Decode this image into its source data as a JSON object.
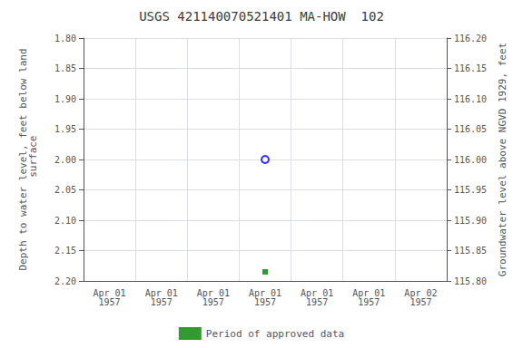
{
  "chart_data": {
    "type": "scatter",
    "title": "USGS 421140070521401 MA-HOW  102",
    "y_label": "Depth to water level, feet below land\n surface",
    "y2_label": "Groundwater level above NGVD 1929, feet",
    "categories": [
      "Apr 01\n1957",
      "Apr 01\n1957",
      "Apr 01\n1957",
      "Apr 01\n1957",
      "Apr 01\n1957",
      "Apr 01\n1957",
      "Apr 02\n1957"
    ],
    "series": [
      {
        "color": "#0000ff",
        "marker": "circle_open",
        "values": [
          null,
          null,
          null,
          2.0,
          null,
          null,
          null
        ]
      },
      {
        "name": "Period of approved data",
        "color": "#008000",
        "marker": "square",
        "values": [
          null,
          null,
          null,
          2.185,
          null,
          null,
          null
        ]
      }
    ],
    "ylim": [
      2.2,
      1.8
    ],
    "yticks": [
      {
        "value": 1.8,
        "label": "1.80"
      },
      {
        "value": 1.85,
        "label": "1.85"
      },
      {
        "value": 1.9,
        "label": "1.90"
      },
      {
        "value": 1.95,
        "label": "1.95"
      },
      {
        "value": 2.0,
        "label": "2.00"
      },
      {
        "value": 2.05,
        "label": "2.05"
      },
      {
        "value": 2.1,
        "label": "2.10"
      },
      {
        "value": 2.15,
        "label": "2.15"
      },
      {
        "value": 2.2,
        "label": "2.20"
      }
    ],
    "y2lim": [
      115.8,
      116.2
    ],
    "y2ticks": [
      {
        "value": 116.2,
        "label": "116.20"
      },
      {
        "value": 116.15,
        "label": "116.15"
      },
      {
        "value": 116.1,
        "label": "116.10"
      },
      {
        "value": 116.05,
        "label": "116.05"
      },
      {
        "value": 116.0,
        "label": "116.00"
      },
      {
        "value": 115.95,
        "label": "115.95"
      },
      {
        "value": 115.9,
        "label": "115.90"
      },
      {
        "value": 115.85,
        "label": "115.85"
      },
      {
        "value": 115.8,
        "label": "115.80"
      }
    ],
    "grid": true,
    "legend": "bottom"
  }
}
